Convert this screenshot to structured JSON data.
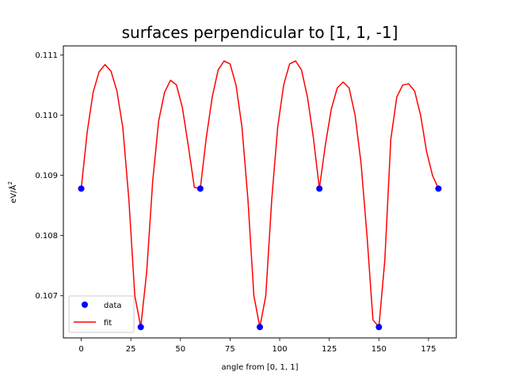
{
  "chart_data": {
    "type": "line",
    "title": "surfaces perpendicular to [1, 1, -1]",
    "xlabel": "angle from [0, 1, 1]",
    "ylabel_main": "eV/Å",
    "ylabel_sup": "2",
    "xlim": [
      -9,
      189
    ],
    "ylim": [
      106.3,
      111.15
    ],
    "value_scale_note": "",
    "xticks": [
      0,
      25,
      50,
      75,
      100,
      125,
      150,
      175
    ],
    "yticks": [
      107,
      108,
      109,
      110,
      111
    ],
    "ytick_labels": [
      "0.107",
      "0.108",
      "0.109",
      "0.110",
      "0.111"
    ],
    "legend": {
      "placement": "lower-left",
      "entries": [
        {
          "label": "data",
          "kind": "marker",
          "color": "#0000ff"
        },
        {
          "label": "fit",
          "kind": "line",
          "color": "#ff0000"
        }
      ]
    },
    "series": [
      {
        "name": "data",
        "kind": "scatter",
        "color": "#0000ff",
        "x": [
          0,
          30,
          60,
          90,
          120,
          150,
          180
        ],
        "y": [
          0.10878,
          0.10648,
          0.10878,
          0.10648,
          0.10878,
          0.10648,
          0.10878
        ]
      },
      {
        "name": "fit",
        "kind": "line",
        "color": "#ff0000",
        "x": [
          0,
          3,
          6,
          9,
          12,
          15,
          18,
          21,
          24,
          27,
          30,
          33,
          36,
          39,
          42,
          45,
          48,
          51,
          54,
          57,
          60,
          63,
          66,
          69,
          72,
          75,
          78,
          81,
          84,
          87,
          90,
          93,
          96,
          99,
          102,
          105,
          108,
          111,
          114,
          117,
          120,
          123,
          126,
          129,
          132,
          135,
          138,
          141,
          144,
          147,
          150,
          153,
          156,
          159,
          162,
          165,
          168,
          171,
          174,
          177,
          180
        ],
        "y": [
          0.10878,
          0.10972,
          0.11038,
          0.11072,
          0.11084,
          0.11073,
          0.1104,
          0.10978,
          0.1086,
          0.107,
          0.10648,
          0.1074,
          0.1089,
          0.1099,
          0.11038,
          0.11058,
          0.1105,
          0.11012,
          0.10948,
          0.1088,
          0.10878,
          0.10962,
          0.1103,
          0.11075,
          0.1109,
          0.11085,
          0.1105,
          0.1098,
          0.1086,
          0.107,
          0.10648,
          0.107,
          0.1086,
          0.1098,
          0.1105,
          0.11085,
          0.1109,
          0.11075,
          0.1103,
          0.10962,
          0.10878,
          0.1095,
          0.1101,
          0.11045,
          0.11055,
          0.11045,
          0.11,
          0.1092,
          0.108,
          0.1066,
          0.10648,
          0.1076,
          0.1096,
          0.1103,
          0.1105,
          0.11052,
          0.1104,
          0.11,
          0.1094,
          0.109,
          0.10878
        ]
      }
    ]
  }
}
